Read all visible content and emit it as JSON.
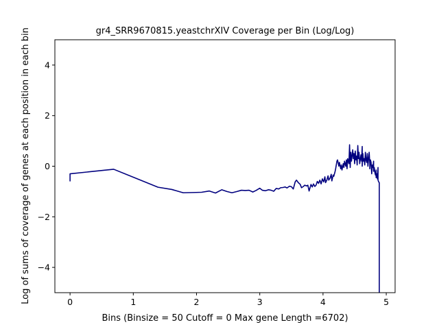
{
  "chart_data": {
    "type": "line",
    "title": "gr4_SRR9670815.yeastchrXIV Coverage per Bin (Log/Log)",
    "xlabel": "Bins  (Binsize = 50 Cutoff = 0 Max gene Length =6702)",
    "ylabel": "Log of sums of coverage of genes at each position in each bin",
    "xlim": [
      -0.24,
      5.14
    ],
    "ylim": [
      -5,
      5
    ],
    "xticks": [
      0,
      1,
      2,
      3,
      4,
      5
    ],
    "yticks": [
      -4,
      -2,
      0,
      2,
      4
    ],
    "grid": false,
    "line_color": "#00007f",
    "series": [
      {
        "x": [
          0.0,
          0.0,
          0.69,
          1.39,
          1.61,
          1.79,
          1.95,
          2.08,
          2.2,
          2.3,
          2.4,
          2.48,
          2.56,
          2.64,
          2.71,
          2.77,
          2.83,
          2.89,
          2.94,
          3.0,
          3.04,
          3.09,
          3.14,
          3.18,
          3.22,
          3.26,
          3.3,
          3.33,
          3.37,
          3.4,
          3.43,
          3.47,
          3.5,
          3.53,
          3.56,
          3.58,
          3.61,
          3.64,
          3.66,
          3.69,
          3.71,
          3.74,
          3.76,
          3.78,
          3.81,
          3.83,
          3.85,
          3.87,
          3.89,
          3.91,
          3.93,
          3.95,
          3.97,
          3.99,
          4.01,
          4.03,
          4.04,
          4.06,
          4.08,
          4.09,
          4.11,
          4.13,
          4.14,
          4.16,
          4.17,
          4.19,
          4.2,
          4.22,
          4.23,
          4.25,
          4.26,
          4.28,
          4.29,
          4.3,
          4.32,
          4.33,
          4.34,
          4.36,
          4.37,
          4.38,
          4.39,
          4.41,
          4.42,
          4.43,
          4.44,
          4.45,
          4.47,
          4.48,
          4.49,
          4.5,
          4.51,
          4.52,
          4.53,
          4.54,
          4.55,
          4.56,
          4.57,
          4.58,
          4.6,
          4.61,
          4.62,
          4.62,
          4.63,
          4.64,
          4.65,
          4.66,
          4.67,
          4.68,
          4.69,
          4.7,
          4.71,
          4.72,
          4.73,
          4.74,
          4.74,
          4.75,
          4.76,
          4.77,
          4.78,
          4.79,
          4.8,
          4.8,
          4.81,
          4.82,
          4.83,
          4.84,
          4.84,
          4.85,
          4.86,
          4.87,
          4.87,
          4.88,
          4.89,
          4.89,
          4.89
        ],
        "y": [
          -0.6,
          -0.3,
          -0.12,
          -0.83,
          -0.92,
          -1.05,
          -1.04,
          -1.03,
          -0.98,
          -1.06,
          -0.93,
          -1.0,
          -1.05,
          -1.0,
          -0.95,
          -0.96,
          -0.95,
          -1.02,
          -0.96,
          -0.87,
          -0.95,
          -0.97,
          -0.93,
          -0.95,
          -0.99,
          -0.88,
          -0.9,
          -0.85,
          -0.84,
          -0.82,
          -0.86,
          -0.79,
          -0.81,
          -0.9,
          -0.62,
          -0.55,
          -0.65,
          -0.72,
          -0.85,
          -0.8,
          -0.75,
          -0.78,
          -0.75,
          -0.98,
          -0.72,
          -0.82,
          -0.7,
          -0.8,
          -0.75,
          -0.6,
          -0.68,
          -0.55,
          -0.7,
          -0.5,
          -0.62,
          -0.42,
          -0.65,
          -0.55,
          -0.38,
          -0.55,
          -0.48,
          -0.32,
          -0.58,
          -0.35,
          -0.4,
          -0.22,
          -0.1,
          0.2,
          0.25,
          0.0,
          0.15,
          -0.1,
          0.05,
          -0.15,
          0.1,
          -0.05,
          0.2,
          0.0,
          0.25,
          -0.1,
          0.3,
          0.1,
          0.85,
          -0.05,
          0.55,
          0.2,
          0.65,
          0.3,
          0.5,
          0.1,
          0.6,
          0.25,
          0.4,
          0.05,
          0.82,
          0.3,
          0.55,
          0.1,
          0.45,
          0.2,
          0.78,
          0.0,
          0.5,
          0.2,
          0.3,
          0.05,
          0.55,
          0.25,
          0.15,
          0.5,
          0.0,
          0.3,
          0.55,
          0.1,
          -0.1,
          0.25,
          0.15,
          -0.3,
          0.05,
          -0.05,
          0.2,
          -0.2,
          -0.05,
          -0.25,
          -0.35,
          -0.15,
          -0.45,
          -0.3,
          -0.5,
          -0.05,
          -0.55,
          -0.62,
          -0.65,
          -5.0,
          -6.0
        ]
      }
    ]
  }
}
